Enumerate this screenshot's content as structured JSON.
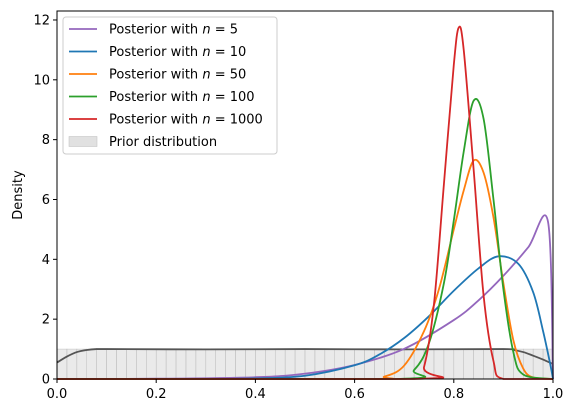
{
  "chart_data": {
    "type": "line",
    "ylabel": "Density",
    "xlabel": "",
    "xlim": [
      0,
      1
    ],
    "ylim": [
      0,
      12.3
    ],
    "xticks": [
      0.0,
      0.2,
      0.4,
      0.6,
      0.8,
      1.0
    ],
    "xtick_labels": [
      "0.0",
      "0.2",
      "0.4",
      "0.6",
      "0.8",
      "1.0"
    ],
    "yticks": [
      0,
      2,
      4,
      6,
      8,
      10,
      12
    ],
    "ytick_labels": [
      "0",
      "2",
      "4",
      "6",
      "8",
      "10",
      "12"
    ],
    "grid": false,
    "legend_position": "top-left",
    "series": [
      {
        "legend_prefix": "Posterior with ",
        "n_label": "5",
        "n": 5,
        "color": "#9467bd",
        "x": [
          0.0,
          0.2,
          0.4,
          0.5,
          0.6,
          0.7,
          0.8,
          0.85,
          0.9,
          0.95,
          0.99,
          1.0
        ],
        "y": [
          0.0,
          0.01,
          0.06,
          0.18,
          0.47,
          1.01,
          1.97,
          2.63,
          3.45,
          4.4,
          5.25,
          0.0
        ]
      },
      {
        "legend_prefix": "Posterior with ",
        "n_label": "10",
        "n": 10,
        "color": "#1f77b4",
        "x": [
          0.0,
          0.3,
          0.4,
          0.5,
          0.6,
          0.65,
          0.7,
          0.75,
          0.8,
          0.85,
          0.89,
          0.93,
          0.96,
          0.98,
          0.995,
          1.0
        ],
        "y": [
          0.0,
          0.0,
          0.02,
          0.11,
          0.46,
          0.82,
          1.37,
          2.1,
          2.95,
          3.7,
          4.1,
          3.85,
          2.9,
          1.6,
          0.45,
          0.0
        ]
      },
      {
        "legend_prefix": "Posterior with ",
        "n_label": "50",
        "n": 50,
        "color": "#ff7f0e",
        "x": [
          0.0,
          0.62,
          0.66,
          0.7,
          0.74,
          0.77,
          0.8,
          0.82,
          0.84,
          0.86,
          0.88,
          0.9,
          0.92,
          0.94,
          0.96,
          1.0
        ],
        "y": [
          0.0,
          0.0,
          0.08,
          0.45,
          1.6,
          3.0,
          5.0,
          6.3,
          7.3,
          6.9,
          5.4,
          3.2,
          1.3,
          0.35,
          0.05,
          0.0
        ]
      },
      {
        "legend_prefix": "Posterior with ",
        "n_label": "100",
        "n": 100,
        "color": "#2ca02c",
        "x": [
          0.0,
          0.68,
          0.72,
          0.75,
          0.78,
          0.8,
          0.82,
          0.84,
          0.86,
          0.88,
          0.9,
          0.92,
          0.94,
          1.0
        ],
        "y": [
          0.0,
          0.0,
          0.3,
          1.2,
          3.2,
          5.3,
          7.6,
          9.3,
          8.7,
          6.0,
          3.0,
          0.9,
          0.15,
          0.0
        ]
      },
      {
        "legend_prefix": "Posterior with ",
        "n_label": "1000",
        "n": 1000,
        "color": "#d62728",
        "x": [
          0.0,
          0.72,
          0.74,
          0.76,
          0.78,
          0.8,
          0.81,
          0.82,
          0.84,
          0.86,
          0.88,
          0.9,
          1.0
        ],
        "y": [
          0.0,
          0.0,
          0.4,
          2.5,
          6.5,
          10.5,
          11.75,
          11.0,
          7.0,
          2.8,
          0.6,
          0.0,
          0.0
        ]
      }
    ],
    "prior": {
      "label": "Prior distribution",
      "fill_color": "#d9d9d9",
      "line_color": "#555555",
      "kde_x": [
        0.0,
        0.02,
        0.04,
        0.06,
        0.08,
        0.1,
        0.3,
        0.5,
        0.7,
        0.9,
        0.92,
        0.94,
        0.96,
        0.98,
        1.0
      ],
      "kde_y": [
        0.55,
        0.75,
        0.9,
        0.97,
        1.0,
        1.0,
        0.99,
        1.0,
        0.99,
        1.0,
        0.97,
        0.9,
        0.78,
        0.65,
        0.5
      ],
      "bins": 50,
      "bin_height": 1.0
    }
  }
}
